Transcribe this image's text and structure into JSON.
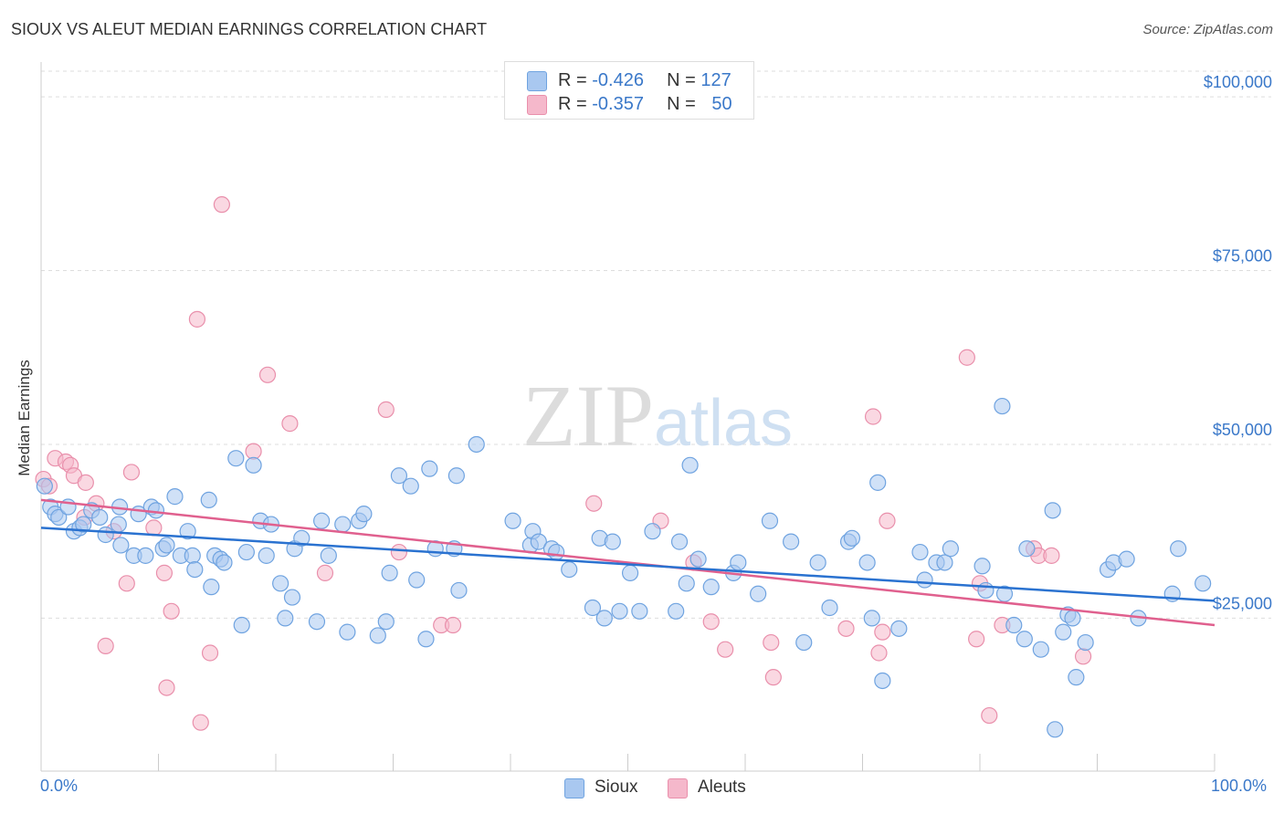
{
  "header": {
    "title": "SIOUX VS ALEUT MEDIAN EARNINGS CORRELATION CHART",
    "source": "Source: ZipAtlas.com"
  },
  "watermark": "ZIPatlas",
  "colors": {
    "sioux_fill": "#a9c8f0",
    "sioux_stroke": "#6fa3e0",
    "sioux_line": "#2a72d0",
    "aleut_fill": "#f5b8cb",
    "aleut_stroke": "#e98fab",
    "aleut_line": "#e0608e",
    "tick_text": "#3a78c9",
    "grid": "#dddddd"
  },
  "stats_legend": {
    "rows": [
      {
        "r_label": "R = ",
        "r_value": "-0.426",
        "n_label": "N = ",
        "n_value": "127"
      },
      {
        "r_label": "R = ",
        "r_value": "-0.357",
        "n_label": "N = ",
        "n_value": "50"
      }
    ]
  },
  "chart_data": {
    "type": "scatter",
    "title": "SIOUX VS ALEUT MEDIAN EARNINGS CORRELATION CHART",
    "xlabel": "",
    "ylabel": "Median Earnings",
    "xlim": [
      0,
      100
    ],
    "ylim": [
      3000,
      105000
    ],
    "x_tick_labels": [
      "0.0%",
      "100.0%"
    ],
    "y_ticks": [
      {
        "value": 25000,
        "label": "$25,000"
      },
      {
        "value": 50000,
        "label": "$50,000"
      },
      {
        "value": 75000,
        "label": "$75,000"
      },
      {
        "value": 100000,
        "label": "$100,000"
      }
    ],
    "grid": true,
    "legend": "bottom-center",
    "series": [
      {
        "name": "Sioux",
        "r": -0.426,
        "n": 127,
        "trend": {
          "x": [
            0,
            100
          ],
          "y": [
            38000,
            27500
          ]
        },
        "points": [
          [
            0.3,
            44000
          ],
          [
            0.8,
            41000
          ],
          [
            1.2,
            40000
          ],
          [
            1.5,
            39500
          ],
          [
            2.3,
            41000
          ],
          [
            2.8,
            37500
          ],
          [
            3.3,
            38000
          ],
          [
            3.6,
            38500
          ],
          [
            4.3,
            40500
          ],
          [
            5.0,
            39500
          ],
          [
            5.5,
            37000
          ],
          [
            6.6,
            38500
          ],
          [
            6.7,
            41000
          ],
          [
            6.8,
            35500
          ],
          [
            7.9,
            34000
          ],
          [
            8.3,
            40000
          ],
          [
            8.9,
            34000
          ],
          [
            9.4,
            41000
          ],
          [
            9.8,
            40500
          ],
          [
            10.4,
            35000
          ],
          [
            10.7,
            35500
          ],
          [
            11.4,
            42500
          ],
          [
            11.9,
            34000
          ],
          [
            12.5,
            37500
          ],
          [
            12.9,
            34000
          ],
          [
            13.1,
            32000
          ],
          [
            14.3,
            42000
          ],
          [
            14.5,
            29500
          ],
          [
            14.8,
            34000
          ],
          [
            15.3,
            33500
          ],
          [
            15.6,
            33000
          ],
          [
            16.6,
            48000
          ],
          [
            17.1,
            24000
          ],
          [
            17.5,
            34500
          ],
          [
            18.1,
            47000
          ],
          [
            18.7,
            39000
          ],
          [
            19.2,
            34000
          ],
          [
            19.6,
            38500
          ],
          [
            20.4,
            30000
          ],
          [
            20.8,
            25000
          ],
          [
            21.4,
            28000
          ],
          [
            21.6,
            35000
          ],
          [
            22.2,
            36500
          ],
          [
            23.5,
            24500
          ],
          [
            23.9,
            39000
          ],
          [
            24.5,
            34000
          ],
          [
            25.7,
            38500
          ],
          [
            26.1,
            23000
          ],
          [
            27.1,
            39000
          ],
          [
            27.5,
            40000
          ],
          [
            28.7,
            22500
          ],
          [
            29.4,
            24500
          ],
          [
            29.7,
            31500
          ],
          [
            30.5,
            45500
          ],
          [
            31.5,
            44000
          ],
          [
            32.0,
            30500
          ],
          [
            32.8,
            22000
          ],
          [
            33.1,
            46500
          ],
          [
            33.6,
            35000
          ],
          [
            35.2,
            35000
          ],
          [
            35.4,
            45500
          ],
          [
            35.6,
            29000
          ],
          [
            37.1,
            50000
          ],
          [
            40.2,
            39000
          ],
          [
            41.7,
            35500
          ],
          [
            41.9,
            37500
          ],
          [
            42.4,
            36000
          ],
          [
            43.5,
            35000
          ],
          [
            43.9,
            34500
          ],
          [
            45.0,
            32000
          ],
          [
            47.0,
            26500
          ],
          [
            47.6,
            36500
          ],
          [
            48.0,
            25000
          ],
          [
            48.7,
            36000
          ],
          [
            49.3,
            26000
          ],
          [
            50.2,
            31500
          ],
          [
            51.0,
            26000
          ],
          [
            52.1,
            37500
          ],
          [
            54.1,
            26000
          ],
          [
            54.4,
            36000
          ],
          [
            55.0,
            30000
          ],
          [
            55.3,
            47000
          ],
          [
            56.0,
            33500
          ],
          [
            57.1,
            29500
          ],
          [
            59.0,
            31500
          ],
          [
            59.4,
            33000
          ],
          [
            61.1,
            28500
          ],
          [
            62.1,
            39000
          ],
          [
            63.9,
            36000
          ],
          [
            65.0,
            21500
          ],
          [
            66.2,
            33000
          ],
          [
            67.2,
            26500
          ],
          [
            68.8,
            36000
          ],
          [
            69.1,
            36500
          ],
          [
            70.4,
            33000
          ],
          [
            70.8,
            25000
          ],
          [
            71.3,
            44500
          ],
          [
            71.7,
            16000
          ],
          [
            73.1,
            23500
          ],
          [
            74.9,
            34500
          ],
          [
            75.3,
            30500
          ],
          [
            76.3,
            33000
          ],
          [
            77.0,
            33000
          ],
          [
            77.5,
            35000
          ],
          [
            80.2,
            32500
          ],
          [
            80.5,
            29000
          ],
          [
            81.9,
            55500
          ],
          [
            82.1,
            28500
          ],
          [
            82.9,
            24000
          ],
          [
            83.8,
            22000
          ],
          [
            84.0,
            35000
          ],
          [
            85.2,
            20500
          ],
          [
            86.2,
            40500
          ],
          [
            86.4,
            9000
          ],
          [
            87.1,
            23000
          ],
          [
            87.5,
            25500
          ],
          [
            87.9,
            25000
          ],
          [
            88.2,
            16500
          ],
          [
            89.0,
            21500
          ],
          [
            90.9,
            32000
          ],
          [
            91.4,
            33000
          ],
          [
            92.5,
            33500
          ],
          [
            93.5,
            25000
          ],
          [
            96.4,
            28500
          ],
          [
            96.9,
            35000
          ],
          [
            99.0,
            30000
          ]
        ]
      },
      {
        "name": "Aleuts",
        "r": -0.357,
        "n": 50,
        "trend": {
          "x": [
            0,
            100
          ],
          "y": [
            42000,
            24000
          ]
        },
        "points": [
          [
            0.2,
            45000
          ],
          [
            0.7,
            44000
          ],
          [
            1.2,
            48000
          ],
          [
            2.1,
            47500
          ],
          [
            2.5,
            47000
          ],
          [
            2.8,
            45500
          ],
          [
            3.7,
            39500
          ],
          [
            3.8,
            44500
          ],
          [
            4.7,
            41500
          ],
          [
            5.5,
            21000
          ],
          [
            6.2,
            37500
          ],
          [
            7.3,
            30000
          ],
          [
            7.7,
            46000
          ],
          [
            9.6,
            38000
          ],
          [
            10.5,
            31500
          ],
          [
            10.7,
            15000
          ],
          [
            11.1,
            26000
          ],
          [
            13.3,
            68000
          ],
          [
            13.6,
            10000
          ],
          [
            14.4,
            20000
          ],
          [
            15.4,
            84500
          ],
          [
            18.1,
            49000
          ],
          [
            19.3,
            60000
          ],
          [
            21.2,
            53000
          ],
          [
            24.2,
            31500
          ],
          [
            29.4,
            55000
          ],
          [
            30.5,
            34500
          ],
          [
            34.1,
            24000
          ],
          [
            35.1,
            24000
          ],
          [
            47.1,
            41500
          ],
          [
            52.8,
            39000
          ],
          [
            55.6,
            33000
          ],
          [
            57.1,
            24500
          ],
          [
            58.3,
            20500
          ],
          [
            62.2,
            21500
          ],
          [
            62.4,
            16500
          ],
          [
            68.6,
            23500
          ],
          [
            70.9,
            54000
          ],
          [
            71.4,
            20000
          ],
          [
            71.7,
            23000
          ],
          [
            72.1,
            39000
          ],
          [
            78.9,
            62500
          ],
          [
            79.7,
            22000
          ],
          [
            80.0,
            30000
          ],
          [
            80.8,
            11000
          ],
          [
            81.9,
            24000
          ],
          [
            84.6,
            35000
          ],
          [
            85.0,
            34000
          ],
          [
            86.1,
            34000
          ],
          [
            88.8,
            19500
          ]
        ]
      }
    ]
  }
}
